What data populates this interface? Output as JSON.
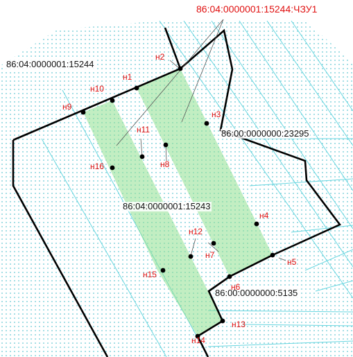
{
  "colors": {
    "background": "#ffffff",
    "dot_pattern": "#63c7d2",
    "thin_lines": "#67d6e0",
    "zone_fill": "#8fe08f",
    "boundary": "#000000",
    "point_label": "#e01010",
    "plot_label": "#111111"
  },
  "title": "86:04:0000001:15244:ЧЗУ1",
  "plots": [
    {
      "id": "p15244",
      "label": "86:04:0000001:15244"
    },
    {
      "id": "p23295",
      "label": "86:00:0000000:23295"
    },
    {
      "id": "p15243",
      "label": "86:04:0000001:15243"
    },
    {
      "id": "p5135",
      "label": "86:00:0000000:5135"
    }
  ],
  "points": [
    {
      "name": "н1"
    },
    {
      "name": "н2"
    },
    {
      "name": "н3"
    },
    {
      "name": "н4"
    },
    {
      "name": "н5"
    },
    {
      "name": "н6"
    },
    {
      "name": "н7"
    },
    {
      "name": "н8"
    },
    {
      "name": "н9"
    },
    {
      "name": "н10"
    },
    {
      "name": "н11"
    },
    {
      "name": "н12"
    },
    {
      "name": "н13"
    },
    {
      "name": "н14"
    },
    {
      "name": "н15"
    },
    {
      "name": "н16"
    }
  ]
}
